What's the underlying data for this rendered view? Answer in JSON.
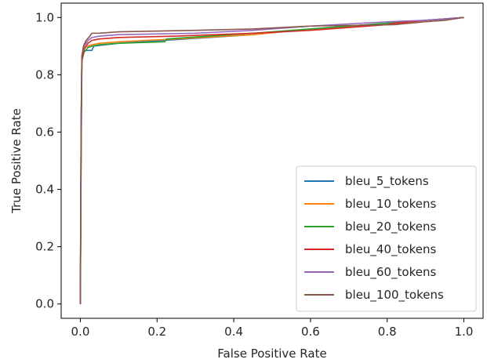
{
  "chart_data": {
    "type": "line",
    "title": "",
    "xlabel": "False Positive Rate",
    "ylabel": "True Positive Rate",
    "xlim": [
      -0.05,
      1.05
    ],
    "ylim": [
      -0.05,
      1.05
    ],
    "xticks": [
      0.0,
      0.2,
      0.4,
      0.6,
      0.8,
      1.0
    ],
    "yticks": [
      0.0,
      0.2,
      0.4,
      0.6,
      0.8,
      1.0
    ],
    "xtick_labels": [
      "0.0",
      "0.2",
      "0.4",
      "0.6",
      "0.8",
      "1.0"
    ],
    "ytick_labels": [
      "0.0",
      "0.2",
      "0.4",
      "0.6",
      "0.8",
      "1.0"
    ],
    "grid": false,
    "legend_position": "lower-right",
    "series": [
      {
        "name": "bleu_5_tokens",
        "color": "#1f77b4",
        "x": [
          0.0,
          0.002,
          0.004,
          0.006,
          0.01,
          0.015,
          0.02,
          0.03,
          0.035,
          0.1,
          0.22,
          0.45,
          0.6,
          0.8,
          0.9,
          1.0
        ],
        "y": [
          0.0,
          0.5,
          0.84,
          0.87,
          0.88,
          0.885,
          0.885,
          0.885,
          0.9,
          0.91,
          0.92,
          0.94,
          0.96,
          0.98,
          0.99,
          1.0
        ]
      },
      {
        "name": "bleu_10_tokens",
        "color": "#ff7f0e",
        "x": [
          0.0,
          0.002,
          0.004,
          0.008,
          0.012,
          0.02,
          0.03,
          0.05,
          0.1,
          0.25,
          0.45,
          0.6,
          0.8,
          0.9,
          1.0
        ],
        "y": [
          0.0,
          0.6,
          0.86,
          0.88,
          0.895,
          0.9,
          0.905,
          0.91,
          0.915,
          0.925,
          0.94,
          0.96,
          0.975,
          0.99,
          1.0
        ]
      },
      {
        "name": "bleu_20_tokens",
        "color": "#2ca02c",
        "x": [
          0.0,
          0.002,
          0.004,
          0.01,
          0.02,
          0.03,
          0.05,
          0.1,
          0.22,
          0.225,
          0.45,
          0.6,
          0.8,
          0.9,
          1.0
        ],
        "y": [
          0.0,
          0.55,
          0.85,
          0.88,
          0.895,
          0.9,
          0.905,
          0.91,
          0.915,
          0.925,
          0.945,
          0.96,
          0.98,
          0.99,
          1.0
        ]
      },
      {
        "name": "bleu_40_tokens",
        "color": "#d62728",
        "x": [
          0.0,
          0.002,
          0.004,
          0.01,
          0.02,
          0.03,
          0.05,
          0.1,
          0.25,
          0.45,
          0.6,
          0.8,
          0.82,
          0.9,
          1.0
        ],
        "y": [
          0.0,
          0.6,
          0.85,
          0.89,
          0.91,
          0.92,
          0.925,
          0.93,
          0.935,
          0.945,
          0.955,
          0.975,
          0.98,
          0.99,
          1.0
        ]
      },
      {
        "name": "bleu_60_tokens",
        "color": "#9467bd",
        "x": [
          0.0,
          0.002,
          0.004,
          0.01,
          0.02,
          0.03,
          0.05,
          0.1,
          0.3,
          0.45,
          0.6,
          0.8,
          0.9,
          1.0
        ],
        "y": [
          0.0,
          0.65,
          0.87,
          0.9,
          0.92,
          0.93,
          0.935,
          0.94,
          0.945,
          0.955,
          0.97,
          0.985,
          0.99,
          1.0
        ]
      },
      {
        "name": "bleu_100_tokens",
        "color": "#8c564b",
        "x": [
          0.0,
          0.002,
          0.004,
          0.008,
          0.015,
          0.025,
          0.03,
          0.05,
          0.1,
          0.3,
          0.45,
          0.6,
          0.82,
          0.9,
          0.95,
          1.0
        ],
        "y": [
          0.0,
          0.6,
          0.86,
          0.9,
          0.92,
          0.935,
          0.945,
          0.945,
          0.95,
          0.955,
          0.96,
          0.97,
          0.975,
          0.985,
          0.99,
          1.0
        ]
      }
    ]
  }
}
